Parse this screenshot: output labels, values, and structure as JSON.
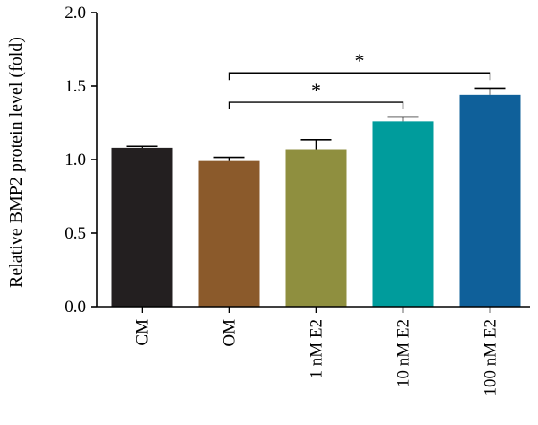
{
  "chart_data": {
    "type": "bar",
    "ylabel": "Relative BMP2 protein level (fold)",
    "xlabel": "",
    "ylim": [
      0,
      2.0
    ],
    "yticks": [
      "0.0",
      "0.5",
      "1.0",
      "1.5",
      "2.0"
    ],
    "categories": [
      "CM",
      "OM",
      "1 nM E2",
      "10 nM E2",
      "100 nM E2"
    ],
    "values": [
      1.08,
      0.99,
      1.07,
      1.26,
      1.44
    ],
    "errors": [
      0.01,
      0.025,
      0.065,
      0.03,
      0.045
    ],
    "colors": [
      "#231f20",
      "#8b5a2b",
      "#8f8f3f",
      "#009c9c",
      "#0f609a"
    ],
    "grid": false,
    "significance": [
      {
        "from": 1,
        "to": 3,
        "y": 1.39,
        "label": "*"
      },
      {
        "from": 1,
        "to": 4,
        "y": 1.59,
        "label": "*"
      }
    ]
  }
}
